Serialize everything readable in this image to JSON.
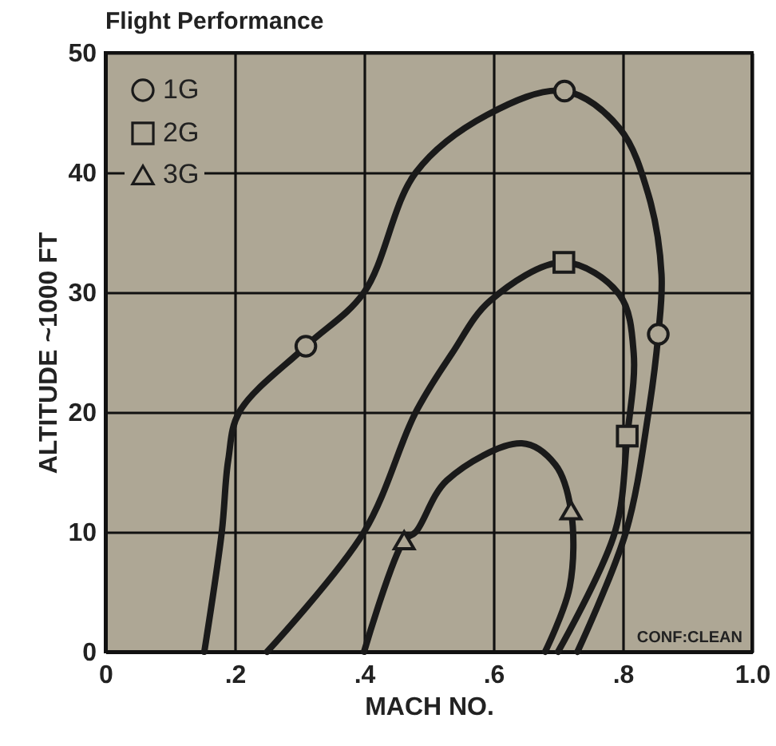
{
  "chart_data": {
    "type": "line",
    "title": "Flight Performance",
    "xlabel": "MACH NO.",
    "ylabel": "ALTITUDE ~1000 FT",
    "annotations": [
      "CONF:CLEAN"
    ],
    "xlim": [
      0,
      1
    ],
    "xticks": [
      0,
      {
        "value": 0.2,
        "label": ".2"
      },
      {
        "value": 0.4,
        "label": ".4"
      },
      {
        "value": 0.6,
        "label": ".6"
      },
      {
        "value": 0.8,
        "label": ".8"
      },
      {
        "value": 1,
        "label": "1.0"
      }
    ],
    "ylim": [
      0,
      50
    ],
    "yticks": [
      0,
      10,
      20,
      30,
      40,
      50
    ],
    "grid": true,
    "legend": "top left",
    "line_style": "solid",
    "series": [
      {
        "type": "line",
        "color": "#1a1a1a",
        "x": [
          0.153,
          0.18,
          0.19,
          0.207,
          0.31,
          0.4,
          0.48,
          0.59,
          0.71,
          0.795,
          0.84,
          0.86,
          0.855,
          0.84,
          0.805,
          0.73
        ],
        "values": [
          0,
          10,
          16,
          20,
          25.5,
          30,
          40,
          44.8,
          46.8,
          43.7,
          38.1,
          31.5,
          26.5,
          20,
          10,
          0
        ]
      },
      {
        "type": "line",
        "color": "#1a1a1a",
        "x": [
          0.25,
          0.4,
          0.48,
          0.536,
          0.595,
          0.709,
          0.795,
          0.817,
          0.807,
          0.788,
          0.7
        ],
        "values": [
          0,
          10,
          20,
          24.9,
          29.3,
          32.5,
          29.8,
          24.9,
          18,
          10,
          0
        ]
      },
      {
        "type": "line",
        "color": "#1a1a1a",
        "x": [
          0.4,
          0.462,
          0.48,
          0.528,
          0.644,
          0.696,
          0.72,
          0.718,
          0.68
        ],
        "values": [
          0,
          9.3,
          10,
          14.3,
          17.4,
          15.6,
          11.8,
          5.4,
          0
        ]
      },
      {
        "type": "scatter",
        "name": "1G",
        "marker": "circle",
        "color": "#1a1a1a",
        "x": [
          0.31,
          0.71,
          0.855
        ],
        "values": [
          25.5,
          46.8,
          26.5
        ]
      },
      {
        "type": "scatter",
        "name": "2G",
        "marker": "square",
        "color": "#1a1a1a",
        "x": [
          0.709,
          0.807
        ],
        "values": [
          32.5,
          18
        ]
      },
      {
        "type": "scatter",
        "name": "3G",
        "marker": "triangle",
        "color": "#1a1a1a",
        "x": [
          0.462,
          0.72
        ],
        "values": [
          9.3,
          11.8
        ]
      }
    ]
  }
}
